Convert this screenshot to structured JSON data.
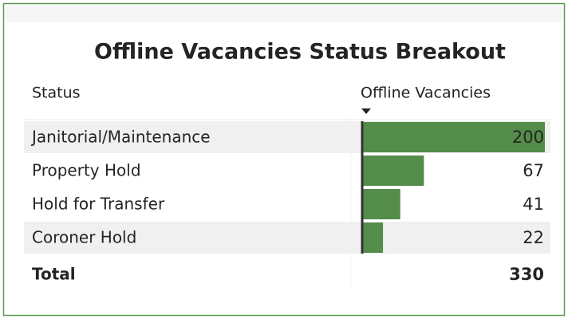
{
  "title": "Offline Vacancies Status Breakout",
  "table": {
    "columns": [
      "Status",
      "Offline Vacancies"
    ],
    "rows": [
      [
        "Janitorial/Maintenance",
        200
      ],
      [
        "Property Hold",
        67
      ],
      [
        "Hold for Transfer",
        41
      ],
      [
        "Coroner Hold",
        22
      ]
    ],
    "total": {
      "label": "Total",
      "value": 330
    },
    "bar_color": "#548c4a"
  }
}
